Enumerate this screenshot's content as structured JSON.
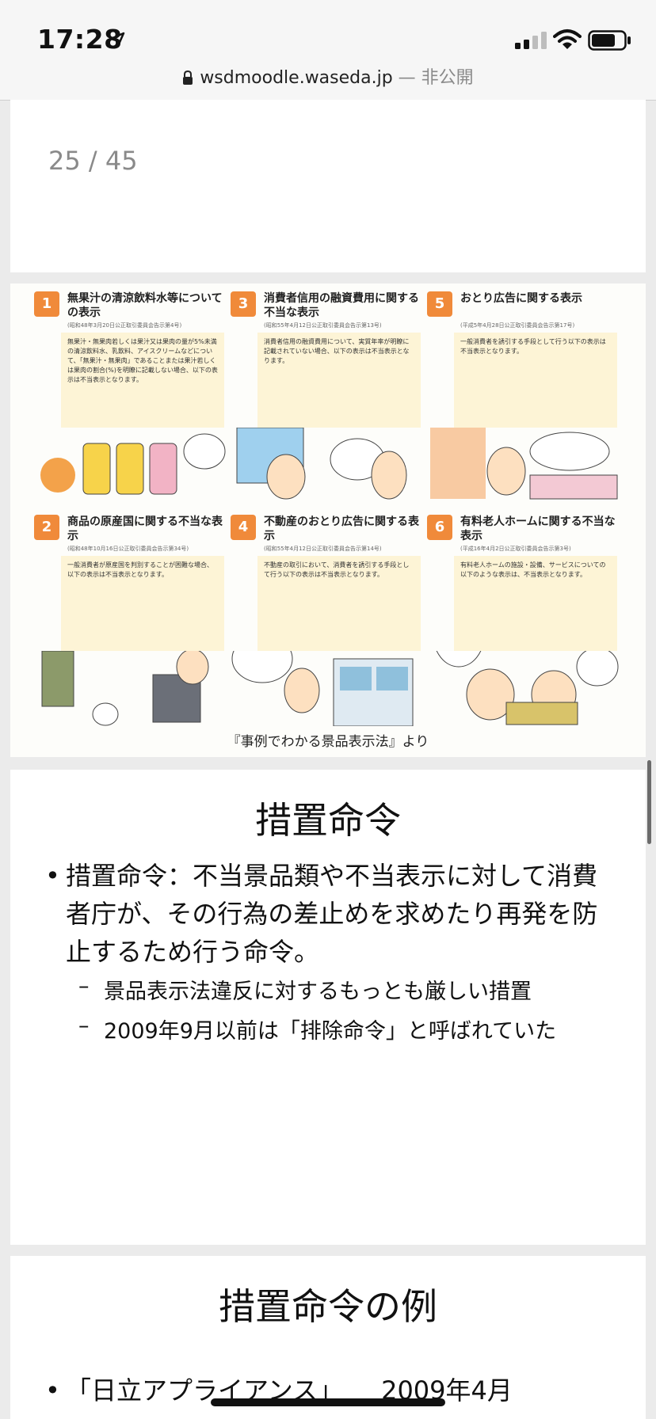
{
  "status_bar": {
    "time": "17:28",
    "url": "wsdmoodle.waseda.jp",
    "url_suffix": " — 非公開"
  },
  "page_counter": "25 / 45",
  "infographic": {
    "panels": [
      {
        "num": "1",
        "title": "無果汁の清涼飲料水等についての表示",
        "source": "(昭和48年3月20日公正取引委員会告示第4号)",
        "body": "無果汁・無果肉若しくは果汁又は果肉の量が5%未満の清涼飲料水、乳飲料、アイスクリームなどについて、「無果汁・無果肉」であることまたは果汁若しくは果肉の割合(%)を明瞭に記載しない場合、以下の表示は不当表示となります。"
      },
      {
        "num": "3",
        "title": "消費者信用の融資費用に関する不当な表示",
        "source": "(昭和55年4月12日公正取引委員会告示第13号)",
        "body": "消費者信用の融資費用について、実質年率が明瞭に記載されていない場合、以下の表示は不当表示となります。"
      },
      {
        "num": "5",
        "title": "おとり広告に関する表示",
        "source": "(平成5年4月28日公正取引委員会告示第17号)",
        "body": "一般消費者を誘引する手段として行う以下の表示は不当表示となります。"
      },
      {
        "num": "2",
        "title": "商品の原産国に関する不当な表示",
        "source": "(昭和48年10月16日公正取引委員会告示第34号)",
        "body": "一般消費者が原産国を判別することが困難な場合、以下の表示は不当表示となります。"
      },
      {
        "num": "4",
        "title": "不動産のおとり広告に関する表示",
        "source": "(昭和55年4月12日公正取引委員会告示第14号)",
        "body": "不動産の取引において、消費者を誘引する手段として行う以下の表示は不当表示となります。"
      },
      {
        "num": "6",
        "title": "有料老人ホームに関する不当な表示",
        "source": "(平成16年4月2日公正取引委員会告示第3号)",
        "body": "有料老人ホームの施設・設備、サービスについての以下のような表示は、不当表示となります。"
      }
    ],
    "credit": "『事例でわかる景品表示法』より"
  },
  "slide_measures": {
    "title": "措置命令",
    "bullet": "措置命令：不当景品類や不当表示に対して消費者庁が、その行為の差止めを求めたり再発を防止するため行う命令。",
    "sub1": "景品表示法違反に対するもっとも厳しい措置",
    "sub2": "2009年9月以前は「排除命令」と呼ばれていた"
  },
  "slide_examples": {
    "title": "措置命令の例",
    "bullet": "「日立アプライアンス」　　2009年4月"
  },
  "icons": [
    "location-arrow-icon",
    "signal-icon",
    "wifi-icon",
    "battery-icon",
    "lock-icon"
  ],
  "colors": {
    "accent_orange": "#f08a3a",
    "panel_bg": "#fdf4d6"
  }
}
